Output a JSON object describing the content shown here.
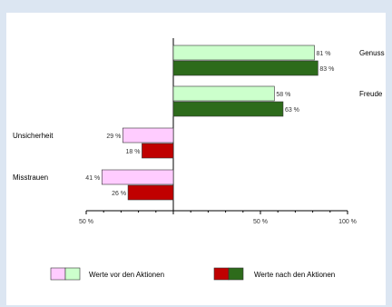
{
  "chart_data": {
    "type": "bar",
    "orientation": "diverging-horizontal",
    "title": "",
    "xlabel": "",
    "ylabel": "",
    "categories": [
      "Genuss",
      "Freude",
      "Unsicherheit",
      "Misstrauen"
    ],
    "category_side": [
      "right",
      "right",
      "left",
      "left"
    ],
    "direction": [
      1,
      1,
      -1,
      -1
    ],
    "series": [
      {
        "name": "Werte vor den Aktionen",
        "values": [
          81,
          58,
          29,
          41
        ],
        "labels": [
          "81 %",
          "58 %",
          "29 %",
          "41 %"
        ],
        "color_positive": "#ccffcc",
        "color_negative": "#ffccff"
      },
      {
        "name": "Werte nach den Aktionen",
        "values": [
          83,
          63,
          18,
          26
        ],
        "labels": [
          "83 %",
          "63 %",
          "18 %",
          "26 %"
        ],
        "color_positive": "#2d6b1b",
        "color_negative": "#c00000"
      }
    ],
    "xlim": [
      -50,
      100
    ],
    "xticks": [
      -50,
      50,
      100
    ],
    "xtick_labels": [
      "50 %",
      "50 %",
      "100 %"
    ],
    "grid": false,
    "legend_position": "bottom"
  }
}
